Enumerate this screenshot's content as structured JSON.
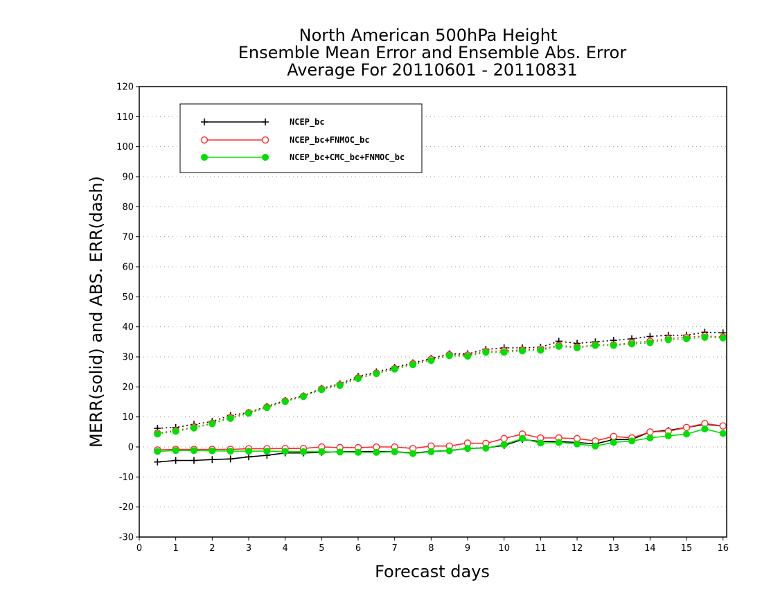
{
  "chart_data": {
    "type": "line",
    "title": [
      "North American 500hPa Height",
      "Ensemble Mean Error and Ensemble Abs. Error",
      "Average For 20110601 - 20110831"
    ],
    "xlabel": "Forecast days",
    "ylabel": "MERR(solid) and ABS. ERR(dash)",
    "xlim": [
      0,
      16.1
    ],
    "ylim": [
      -30,
      120
    ],
    "xticks": [
      "0",
      "1",
      "2",
      "3",
      "4",
      "5",
      "6",
      "7",
      "8",
      "9",
      "10",
      "11",
      "12",
      "13",
      "14",
      "15",
      "16"
    ],
    "yticks": [
      "-30",
      "-20",
      "-10",
      "0",
      "10",
      "20",
      "30",
      "40",
      "50",
      "60",
      "70",
      "80",
      "90",
      "100",
      "110",
      "120"
    ],
    "grid": "horizontal dotted",
    "legend_placement": "top-left",
    "x": [
      0.5,
      1,
      1.5,
      2,
      2.5,
      3,
      3.5,
      4,
      4.5,
      5,
      5.5,
      6,
      6.5,
      7,
      7.5,
      8,
      8.5,
      9,
      9.5,
      10,
      10.5,
      11,
      11.5,
      12,
      12.5,
      13,
      13.5,
      14,
      14.5,
      15,
      15.5,
      16
    ],
    "series": [
      {
        "name": "NCEP_bc",
        "color": "#000000",
        "marker": "plus",
        "merr": [
          -5,
          -4.5,
          -4.5,
          -4.2,
          -4,
          -3.3,
          -2.8,
          -2,
          -2,
          -1.8,
          -1.6,
          -1.6,
          -1.5,
          -1.6,
          -2,
          -1.5,
          -1.2,
          -0.5,
          -0.3,
          0.5,
          2.5,
          1.8,
          1.8,
          1.5,
          1,
          2.5,
          2.5,
          5,
          5.5,
          6.5,
          7.5,
          7
        ],
        "abs_err": [
          6.2,
          6.5,
          7.5,
          8.5,
          10.5,
          11.5,
          13.5,
          15.5,
          17,
          19.5,
          21,
          23.5,
          25,
          26.5,
          28,
          29.5,
          31,
          31,
          32.5,
          33,
          33,
          33.2,
          35.2,
          34.5,
          35,
          35.5,
          36,
          36.8,
          37.2,
          37.2,
          38.2,
          38
        ]
      },
      {
        "name": "NCEP_bc+FNMOC_bc",
        "color": "#ff2a2a",
        "marker": "open-circle",
        "merr": [
          -1,
          -0.8,
          -0.8,
          -0.8,
          -0.8,
          -0.6,
          -0.6,
          -0.5,
          -0.5,
          0,
          -0.2,
          -0.2,
          0,
          0,
          -0.5,
          0.3,
          0.3,
          1.3,
          1.2,
          2.8,
          4.3,
          3,
          3,
          2.8,
          2,
          3.5,
          3,
          5,
          5.2,
          6.5,
          7.8,
          7
        ],
        "abs_err": [
          4.6,
          5.5,
          6.6,
          7.9,
          9.8,
          11.4,
          13.3,
          15.3,
          16.9,
          19.3,
          20.7,
          23,
          24.6,
          26.1,
          27.7,
          29.2,
          30.7,
          30.6,
          31.8,
          32,
          32.3,
          32.6,
          33.8,
          33.3,
          34,
          34,
          34.7,
          35.2,
          36.1,
          36.5,
          37,
          36.6
        ]
      },
      {
        "name": "NCEP_bc+CMC_bc+FNMOC_bc",
        "color": "#00e000",
        "marker": "filled-circle",
        "merr": [
          -1.5,
          -1.2,
          -1.2,
          -1.3,
          -1.4,
          -1.4,
          -1.4,
          -1.5,
          -1.6,
          -1.6,
          -1.7,
          -1.8,
          -1.8,
          -1.6,
          -2.2,
          -1.6,
          -1.3,
          -0.5,
          -0.4,
          0.8,
          2.8,
          1.3,
          1.5,
          1,
          0.3,
          1.5,
          2,
          3,
          3.7,
          4.3,
          6,
          4.5
        ],
        "abs_err": [
          4.3,
          5.2,
          6.3,
          7.7,
          9.5,
          11.2,
          13.1,
          15.1,
          16.8,
          19.1,
          20.5,
          22.8,
          24.4,
          25.9,
          27.4,
          28.8,
          30.4,
          30.2,
          31.5,
          31.5,
          32,
          32.2,
          33.5,
          33,
          33.8,
          33.8,
          34.3,
          34.7,
          35.7,
          36,
          36.5,
          36.3
        ]
      }
    ]
  }
}
